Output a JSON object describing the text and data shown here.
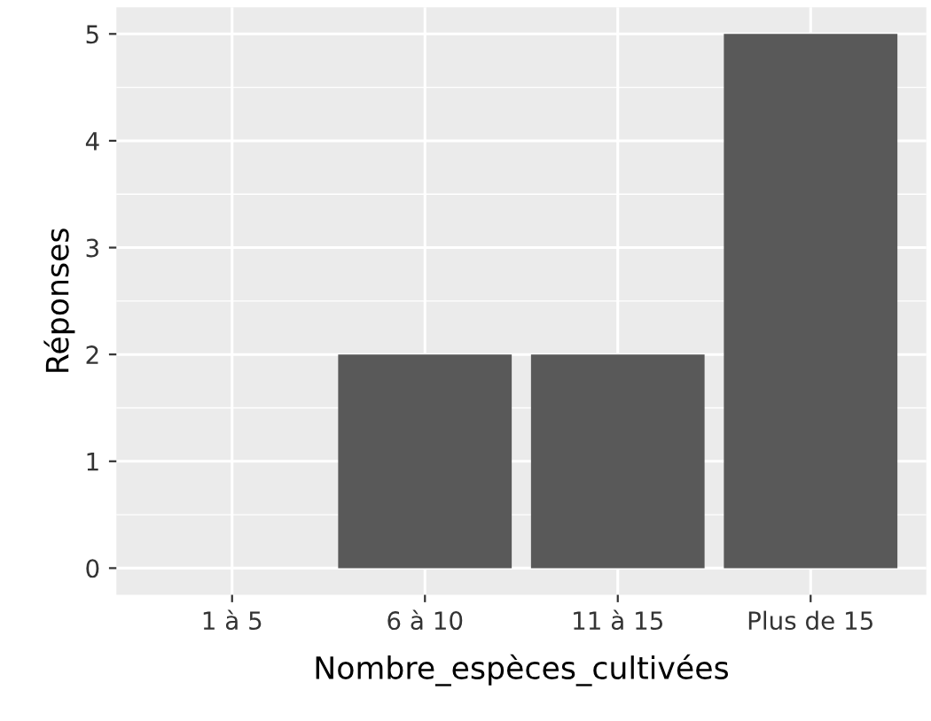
{
  "chart_data": {
    "type": "bar",
    "xlabel": "Nombre_espèces_cultivées",
    "ylabel": "Réponses",
    "categories": [
      "1 à 5",
      "6 à 10",
      "11 à 15",
      "Plus de 15"
    ],
    "values": [
      0,
      2,
      2,
      5
    ],
    "color": "#595959",
    "ylim": [
      -0.25,
      5.25
    ],
    "yticks": [
      0,
      1,
      2,
      3,
      4,
      5
    ],
    "grid": true
  }
}
